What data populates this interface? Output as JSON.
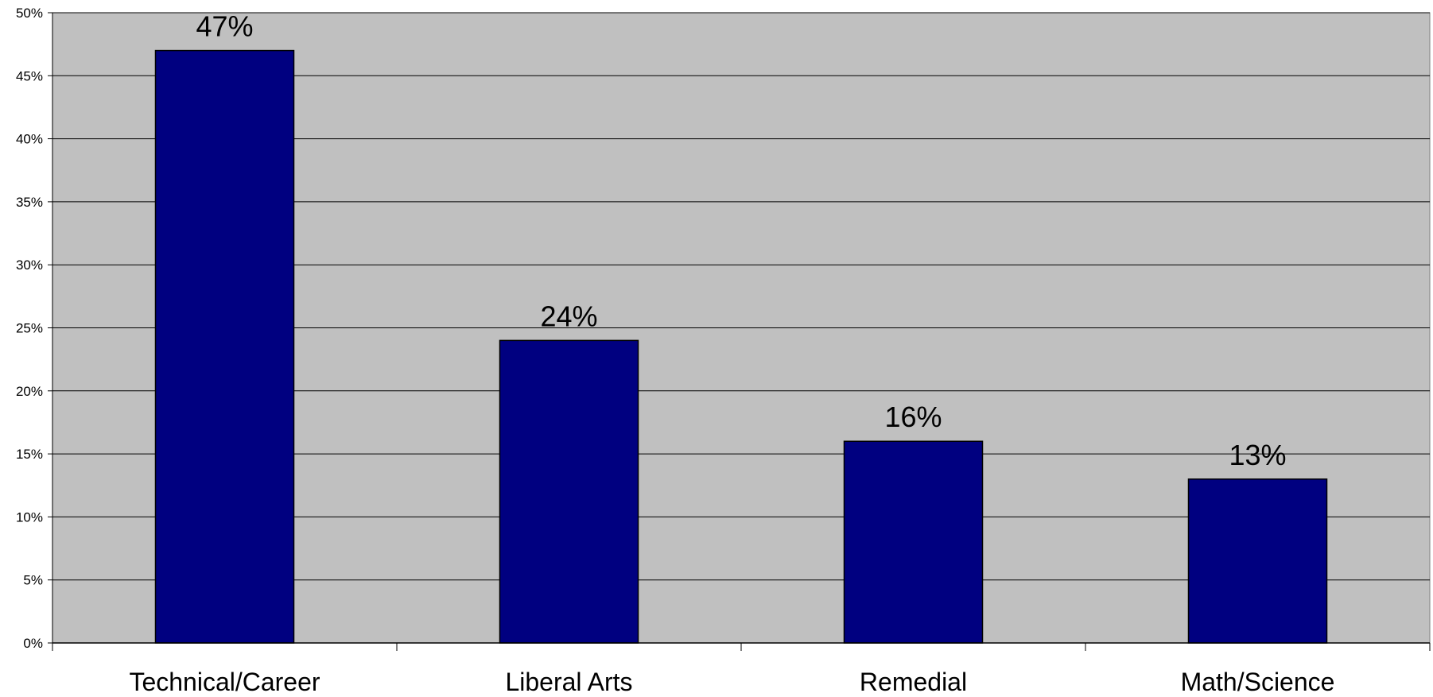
{
  "chart_data": {
    "type": "bar",
    "categories": [
      "Technical/Career",
      "Liberal Arts",
      "Remedial",
      "Math/Science"
    ],
    "values": [
      47,
      24,
      16,
      13
    ],
    "data_labels": [
      "47%",
      "24%",
      "16%",
      "13%"
    ],
    "ylim": [
      0,
      50
    ],
    "y_ticks": [
      "0%",
      "5%",
      "10%",
      "15%",
      "20%",
      "25%",
      "30%",
      "35%",
      "40%",
      "45%",
      "50%"
    ],
    "grid": true,
    "legend": "none",
    "colors": {
      "bar": "#000080",
      "plot_background": "#c0c0c0",
      "gridline": "#000000"
    }
  }
}
